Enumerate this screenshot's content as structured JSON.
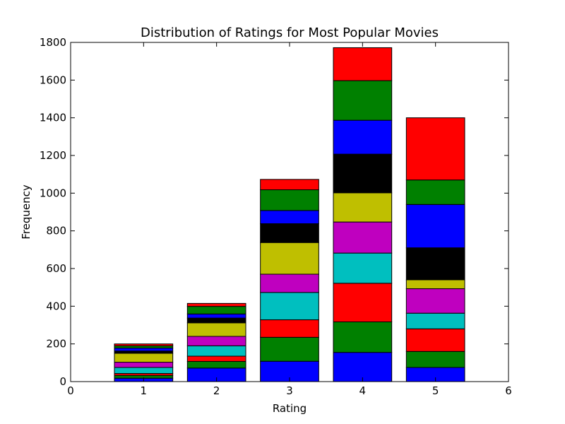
{
  "chart_data": {
    "type": "bar",
    "stacked": true,
    "title": "Distribution of Ratings for Most Popular Movies",
    "xlabel": "Rating",
    "ylabel": "Frequency",
    "xlim": [
      0,
      6
    ],
    "ylim": [
      0,
      1800
    ],
    "xticks": [
      0,
      1,
      2,
      3,
      4,
      5,
      6
    ],
    "yticks": [
      0,
      200,
      400,
      600,
      800,
      1000,
      1200,
      1400,
      1600,
      1800
    ],
    "categories": [
      1,
      2,
      3,
      4,
      5
    ],
    "grid": false,
    "legend": "none",
    "series": [
      {
        "color": "#0000ff",
        "values": [
          18,
          72,
          108,
          155,
          75
        ]
      },
      {
        "color": "#008000",
        "values": [
          15,
          35,
          127,
          162,
          85
        ]
      },
      {
        "color": "#ff0000",
        "values": [
          10,
          28,
          93,
          205,
          120
        ]
      },
      {
        "color": "#00bfbf",
        "values": [
          32,
          55,
          145,
          160,
          83
        ]
      },
      {
        "color": "#bf00bf",
        "values": [
          28,
          50,
          97,
          165,
          130
        ]
      },
      {
        "color": "#bfbf00",
        "values": [
          47,
          72,
          168,
          155,
          47
        ]
      },
      {
        "color": "#000000",
        "values": [
          12,
          25,
          100,
          205,
          170
        ]
      },
      {
        "color": "#0000ff",
        "values": [
          16,
          22,
          70,
          180,
          230
        ]
      },
      {
        "color": "#008000",
        "values": [
          12,
          40,
          110,
          210,
          130
        ]
      },
      {
        "color": "#ff0000",
        "values": [
          10,
          16,
          55,
          175,
          330
        ]
      }
    ]
  }
}
